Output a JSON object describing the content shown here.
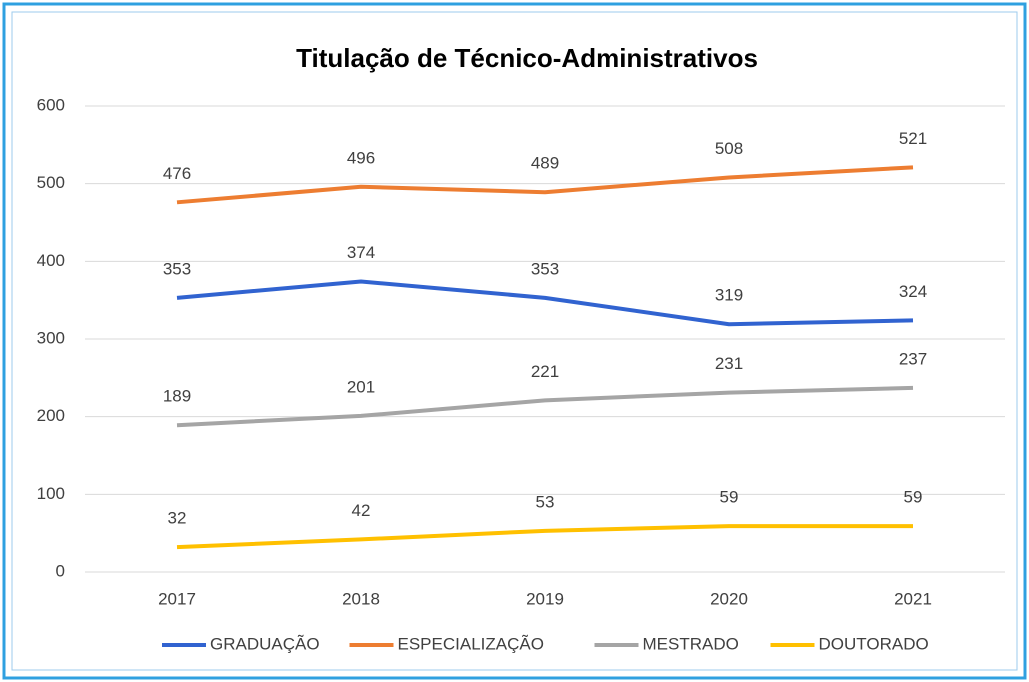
{
  "chart_data": {
    "type": "line",
    "title": "Titulação de Técnico-Administrativos",
    "categories": [
      "2017",
      "2018",
      "2019",
      "2020",
      "2021"
    ],
    "series": [
      {
        "name": "GRADUAÇÃO",
        "color": "#3163d0",
        "values": [
          353,
          374,
          353,
          319,
          324
        ]
      },
      {
        "name": "ESPECIALIZAÇÃO",
        "color": "#ed7d31",
        "values": [
          476,
          496,
          489,
          508,
          521
        ]
      },
      {
        "name": "MESTRADO",
        "color": "#a5a5a5",
        "values": [
          189,
          201,
          221,
          231,
          237
        ]
      },
      {
        "name": "DOUTORADO",
        "color": "#ffc000",
        "values": [
          32,
          42,
          53,
          59,
          59
        ]
      }
    ],
    "ylim": [
      0,
      600
    ],
    "yticks": [
      0,
      100,
      200,
      300,
      400,
      500,
      600
    ],
    "grid": true,
    "legend": "bottom"
  }
}
